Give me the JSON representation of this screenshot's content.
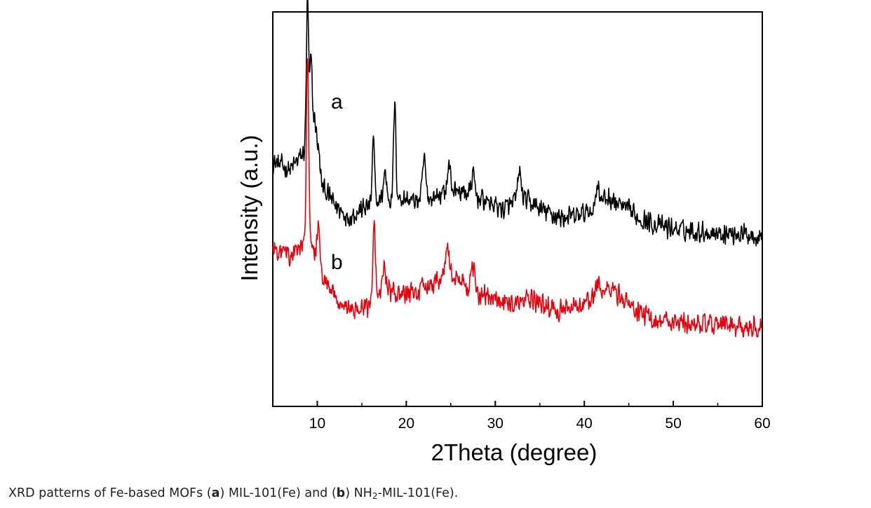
{
  "chart_data": {
    "type": "line",
    "xlabel": "2Theta (degree)",
    "ylabel": "Intensity (a.u.)",
    "xlim": [
      5,
      60
    ],
    "ylim": [
      0,
      100
    ],
    "x_ticks": [
      10,
      20,
      30,
      40,
      50,
      60
    ],
    "x_minor_ticks": [
      15,
      25,
      35,
      45,
      55
    ],
    "y_ticks_shown": false,
    "grid": false,
    "series": [
      {
        "name": "a",
        "color": "#000000",
        "offset": 46,
        "baseline": [
          [
            5,
            62
          ],
          [
            6,
            61
          ],
          [
            7,
            60
          ],
          [
            8,
            63
          ],
          [
            9.2,
            66
          ],
          [
            10.5,
            56
          ],
          [
            12,
            51
          ],
          [
            13.5,
            48
          ],
          [
            15,
            50
          ],
          [
            17,
            52
          ],
          [
            19,
            53
          ],
          [
            21,
            52
          ],
          [
            23,
            53
          ],
          [
            25,
            55
          ],
          [
            27,
            54
          ],
          [
            29,
            52
          ],
          [
            31,
            50
          ],
          [
            33,
            53
          ],
          [
            35,
            50
          ],
          [
            37,
            48
          ],
          [
            39,
            48
          ],
          [
            41,
            50
          ],
          [
            42.5,
            53
          ],
          [
            44,
            51
          ],
          [
            46,
            48
          ],
          [
            48,
            46
          ],
          [
            50,
            45
          ],
          [
            52,
            44.5
          ],
          [
            55,
            44
          ],
          [
            60,
            43.5
          ]
        ],
        "peaks": [
          [
            8.9,
            38
          ],
          [
            9.3,
            22
          ],
          [
            9.7,
            10
          ],
          [
            10.1,
            6
          ],
          [
            16.3,
            16
          ],
          [
            17.6,
            7
          ],
          [
            18.7,
            24
          ],
          [
            22,
            10
          ],
          [
            24.8,
            6
          ],
          [
            27.5,
            5
          ],
          [
            32.7,
            7
          ],
          [
            41.5,
            6
          ]
        ]
      },
      {
        "name": "b",
        "color": "#e8000b",
        "offset": 0,
        "baseline": [
          [
            5,
            40
          ],
          [
            6,
            39
          ],
          [
            7,
            38
          ],
          [
            8,
            40
          ],
          [
            9.2,
            41
          ],
          [
            10.5,
            33
          ],
          [
            12,
            27
          ],
          [
            13.5,
            25
          ],
          [
            15,
            24
          ],
          [
            16.5,
            27
          ],
          [
            17.5,
            30
          ],
          [
            19,
            28
          ],
          [
            21,
            29
          ],
          [
            23,
            31
          ],
          [
            24.5,
            34
          ],
          [
            26,
            32
          ],
          [
            28,
            29
          ],
          [
            30,
            27
          ],
          [
            32,
            26
          ],
          [
            34,
            27
          ],
          [
            36,
            25
          ],
          [
            38,
            24
          ],
          [
            40,
            26
          ],
          [
            42,
            29
          ],
          [
            43,
            30
          ],
          [
            44,
            28
          ],
          [
            46,
            24
          ],
          [
            48,
            22
          ],
          [
            52,
            21
          ],
          [
            56,
            20.5
          ],
          [
            60,
            20
          ]
        ]
      }
    ],
    "series_b_peaks": [
      [
        8.9,
        49
      ],
      [
        10.1,
        10
      ],
      [
        16.4,
        20
      ],
      [
        17.5,
        6
      ],
      [
        24.6,
        7
      ],
      [
        27.5,
        5
      ],
      [
        41.5,
        4
      ]
    ],
    "noise_amplitude": 3.2
  },
  "caption": {
    "pre": "XRD patterns of Fe-based MOFs (",
    "bold_a": "a",
    "mid": ") MIL-101(Fe) and (",
    "bold_b": "b",
    "post_pre_sub": ") NH",
    "sub": "2",
    "post": "-MIL-101(Fe)."
  }
}
